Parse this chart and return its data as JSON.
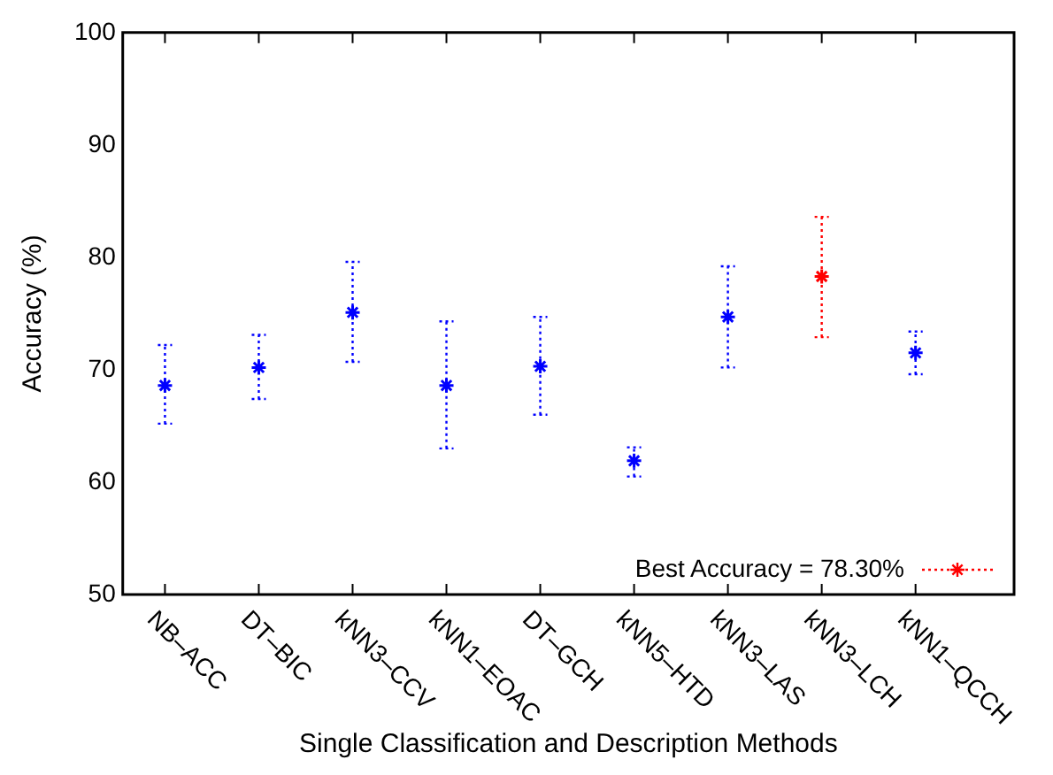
{
  "chart_data": {
    "type": "scatter",
    "xlabel": "Single Classification and Description Methods",
    "ylabel": "Accuracy (%)",
    "categories": [
      "NB–ACC",
      "DT–BIC",
      "kNN3–CCV",
      "kNN1–EOAC",
      "DT–GCH",
      "kNN5–HTD",
      "kNN3–LAS",
      "kNN3–LCH",
      "kNN1–QCCH"
    ],
    "series": [
      {
        "color": "#0000ff",
        "values": [
          68.6,
          70.2,
          75.1,
          68.6,
          70.3,
          61.9,
          74.7,
          null,
          71.5
        ],
        "errors": [
          [
            65.2,
            72.2
          ],
          [
            67.4,
            73.1
          ],
          [
            70.7,
            79.6
          ],
          [
            63.0,
            74.3
          ],
          [
            66.0,
            74.7
          ],
          [
            60.5,
            63.1
          ],
          [
            70.2,
            79.2
          ],
          null,
          [
            69.6,
            73.4
          ]
        ]
      },
      {
        "name": "Best Accuracy = 78.30%",
        "color": "#ff0000",
        "values": [
          null,
          null,
          null,
          null,
          null,
          null,
          null,
          78.3,
          null
        ],
        "errors": [
          null,
          null,
          null,
          null,
          null,
          null,
          null,
          [
            72.9,
            83.6
          ],
          null
        ]
      }
    ],
    "ylim": [
      50,
      100
    ],
    "yticks": [
      50,
      60,
      70,
      80,
      90,
      100
    ],
    "grid": false,
    "legend": "bottom right",
    "marker": "cross",
    "line_style": "dotted"
  }
}
